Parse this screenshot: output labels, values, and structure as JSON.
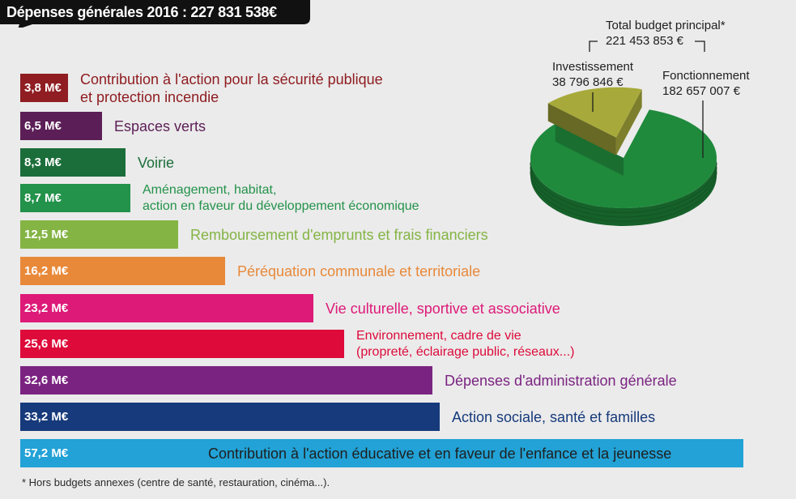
{
  "title": "Dépenses générales 2016 :  227 831 538€",
  "chart_data": [
    {
      "type": "bar",
      "orientation": "horizontal",
      "unit": "M€",
      "categories": [
        "Contribution à l'action pour la sécurité publique\net protection incendie",
        "Espaces verts",
        "Voirie",
        "Aménagement, habitat,\naction en faveur du développement économique",
        "Remboursement d'emprunts et frais financiers",
        "Péréquation communale et territoriale",
        "Vie culturelle, sportive et associative",
        "Environnement, cadre de vie\n(propreté, éclairage public, réseaux...)",
        "Dépenses d'administration générale",
        "Action sociale, santé et familles",
        "Contribution à l'action éducative et en faveur de l'enfance et la jeunesse"
      ],
      "values": [
        3.8,
        6.5,
        8.3,
        8.7,
        12.5,
        16.2,
        23.2,
        25.6,
        32.6,
        33.2,
        57.2
      ],
      "value_labels": [
        "3,8 M€",
        "6,5 M€",
        "8,3 M€",
        "8,7 M€",
        "12,5 M€",
        "16,2 M€",
        "23,2 M€",
        "25,6 M€",
        "32,6 M€",
        "33,2 M€",
        "57,2 M€"
      ],
      "colors": [
        "#8f1d21",
        "#5c1e56",
        "#1b6e3a",
        "#23924a",
        "#84b444",
        "#e8893a",
        "#dd1a78",
        "#dd0a3a",
        "#7b2381",
        "#163a7b",
        "#22a2d6"
      ],
      "label_colors": [
        "#8f1d21",
        "#5c1e56",
        "#1b6e3a",
        "#23924a",
        "#84b444",
        "#e8893a",
        "#dd1a78",
        "#dd0a3a",
        "#7b2381",
        "#163a7b",
        "#1e1e1e"
      ]
    },
    {
      "type": "pie",
      "style": "3d",
      "title": "Total budget principal*",
      "total": "221 453 853 €",
      "slices": [
        {
          "name": "Investissement",
          "value": 38796846,
          "value_label": "38 796 846 €",
          "color": "#a7a93a"
        },
        {
          "name": "Fonctionnement",
          "value": 182657007,
          "value_label": "182 657 007 €",
          "color": "#1f8a3c"
        }
      ]
    }
  ],
  "footnote": "* Hors budgets annexes (centre de santé, restauration, cinéma...).",
  "colors": {
    "background": "#ebebeb",
    "title_bg": "#111111",
    "text_dark": "#1e1e1e"
  }
}
